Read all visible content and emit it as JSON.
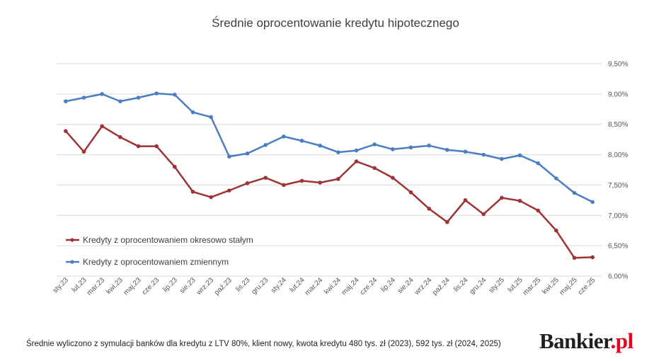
{
  "chart_data": {
    "type": "line",
    "title": "Średnie oprocentowanie kredytu hipotecznego",
    "categories": [
      "sty.23",
      "lut.23",
      "mar.23",
      "kwi.23",
      "maj.23",
      "cze.23",
      "lip.23",
      "sie.23",
      "wrz.23",
      "paź.23",
      "lis.23",
      "gru.23",
      "sty.24",
      "lut.24",
      "mar.24",
      "kwi.24",
      "maj.24",
      "cze.24",
      "lip.24",
      "sie.24",
      "wrz.24",
      "paź.24",
      "lis.24",
      "gru.24",
      "sty.25",
      "lut.25",
      "mar.25",
      "kwi.25",
      "maj.25",
      "cze.25"
    ],
    "series": [
      {
        "name": "Kredyty z oprocentowaniem okresowo stałym",
        "color": "#9e3335",
        "values": [
          8.39,
          8.05,
          8.47,
          8.29,
          8.14,
          8.14,
          7.8,
          7.39,
          7.3,
          7.41,
          7.53,
          7.62,
          7.5,
          7.57,
          7.54,
          7.6,
          7.89,
          7.78,
          7.62,
          7.38,
          7.11,
          6.89,
          7.25,
          7.02,
          7.29,
          7.24,
          7.08,
          6.75,
          6.3,
          6.31
        ]
      },
      {
        "name": "Kredyty z oprocentowaniem zmiennym",
        "color": "#4a7ec2",
        "values": [
          8.88,
          8.94,
          9.0,
          8.88,
          8.94,
          9.01,
          8.99,
          8.7,
          8.62,
          7.97,
          8.02,
          8.16,
          8.3,
          8.23,
          8.15,
          8.04,
          8.07,
          8.17,
          8.09,
          8.12,
          8.15,
          8.08,
          8.05,
          8.0,
          7.93,
          7.99,
          7.86,
          7.61,
          7.37,
          7.22
        ]
      }
    ],
    "yticks": [
      "9,50%",
      "9,00%",
      "8,50%",
      "8,00%",
      "7,50%",
      "7,00%",
      "6,50%",
      "6,00%"
    ],
    "ylim": [
      6.0,
      9.5
    ],
    "y_axis_side": "right",
    "grid": true,
    "legend_position": "bottom-left"
  },
  "footnote": "Średnie wyliczono z symulacji banków dla kredytu z LTV 80%, klient nowy, kwota kredytu 480 tys. zł (2023), 592 tys. zł (2024, 2025)",
  "logo": {
    "text": "Bankier",
    "suffix": ".pl"
  }
}
